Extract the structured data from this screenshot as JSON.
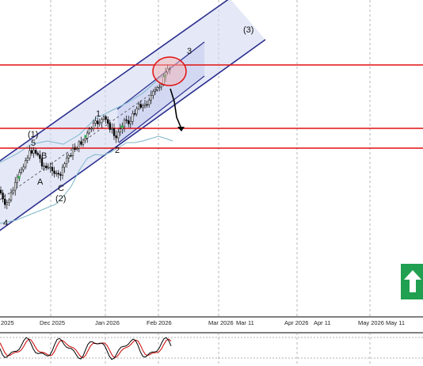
{
  "chart_data": {
    "type": "candlestick",
    "x_axis_labels": [
      "2025",
      "Dec 2025",
      "Jan 2026",
      "Feb 2026",
      "Mar 2026",
      "Mar 11",
      "Apr 2026",
      "Apr 11",
      "May 2026",
      "May 11"
    ],
    "wave_labels": [
      "(1)",
      "5",
      "B",
      "A",
      "C",
      "(2)",
      "4",
      "1",
      "2",
      "3",
      "(3)"
    ],
    "horizontal_levels_count": 3,
    "channel": "ascending",
    "oscillator_panel": true,
    "colors": {
      "channel": "#2a2e8e",
      "channel_fill": "#d4d9f2",
      "levels": "#e01010",
      "bands": "#7cb7c8",
      "up_candle": "#ffffff",
      "down_candle": "#000000",
      "arrow_button": "#20a050",
      "oscillator_main": "#000000",
      "oscillator_signal": "#cc0000"
    },
    "icons": [
      "up-arrow-icon"
    ]
  }
}
